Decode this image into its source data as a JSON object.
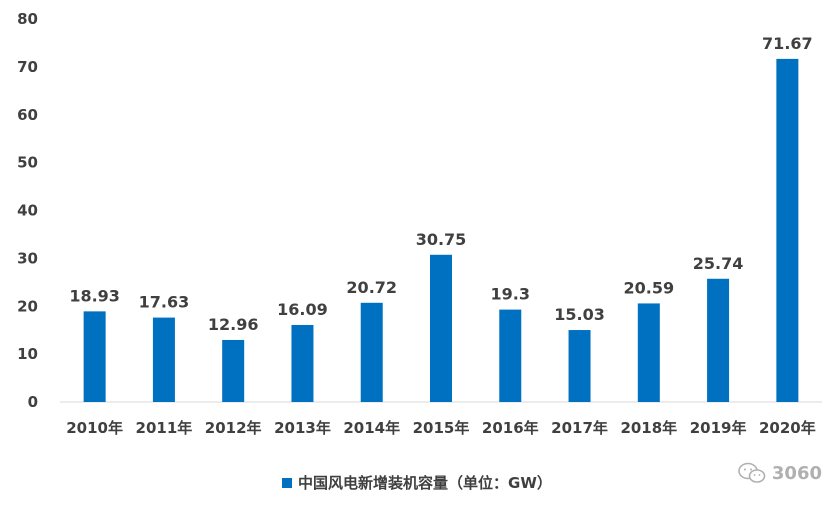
{
  "chart_data": {
    "type": "bar",
    "categories": [
      "2010年",
      "2011年",
      "2012年",
      "2013年",
      "2014年",
      "2015年",
      "2016年",
      "2017年",
      "2018年",
      "2019年",
      "2020年"
    ],
    "series": [
      {
        "name": "中国风电新增装机容量（单位：GW）",
        "values": [
          18.93,
          17.63,
          12.96,
          16.09,
          20.72,
          30.75,
          19.3,
          15.03,
          20.59,
          25.74,
          71.67
        ],
        "labels": [
          "18.93",
          "17.63",
          "12.96",
          "16.09",
          "20.72",
          "30.75",
          "19.3",
          "15.03",
          "20.59",
          "25.74",
          "71.67"
        ]
      }
    ],
    "yticks": [
      "0",
      "10",
      "20",
      "30",
      "40",
      "50",
      "60",
      "70",
      "80"
    ],
    "ylim": [
      0,
      80
    ],
    "grid": false,
    "legend": "bottom",
    "bar_color": "#0070C0"
  },
  "legend": {
    "label": "中国风电新增装机容量（单位：GW）"
  },
  "watermark": {
    "text": "3060",
    "icon": "wechat-icon"
  }
}
